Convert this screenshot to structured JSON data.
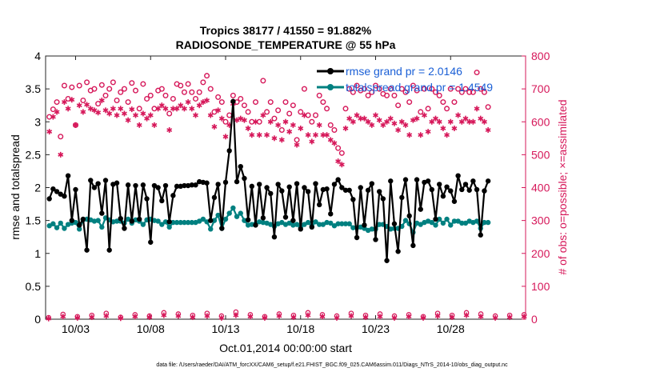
{
  "chart_data": {
    "type": "line",
    "title": "Tropics 38177 / 41550 = 91.882%",
    "subtitle": "RADIOSONDE_TEMPERATURE @ 55 hPa",
    "xlabel": "Oct.01,2014 00:00:00 start",
    "ylabel_left": "rmse and totalspread",
    "ylabel_right": "# of obs: o=possible; ×=assimilated",
    "footer": "data file: /Users/raeder/DAI/ATM_forcXX/CAM6_setup/f.e21.FHIST_BGC.f09_025.CAM6assim.011/Diags_NTrS_2014-10/obs_diag_output.nc",
    "xlim": [
      1,
      33
    ],
    "x_ticks": [
      3,
      8,
      13,
      18,
      23,
      28
    ],
    "x_tick_labels": [
      "10/03",
      "10/08",
      "10/13",
      "10/18",
      "10/23",
      "10/28"
    ],
    "ylim_left": [
      0,
      4
    ],
    "y_ticks_left": [
      "0",
      "0.5",
      "1",
      "1.5",
      "2",
      "2.5",
      "3",
      "3.5",
      "4"
    ],
    "ylim_right": [
      0,
      800
    ],
    "y_ticks_right": [
      "0",
      "100",
      "200",
      "300",
      "400",
      "500",
      "600",
      "700",
      "800"
    ],
    "x_start": 1.25,
    "x_step": 0.25,
    "legend_position": "top-right",
    "series": [
      {
        "name": "rmse grand pr = 2.0146",
        "color": "#000000",
        "marker": "filled-circle",
        "axis": "left",
        "values": [
          1.83,
          1.98,
          1.94,
          1.9,
          1.87,
          2.18,
          1.5,
          1.97,
          1.43,
          1.52,
          1.05,
          2.11,
          2.0,
          2.06,
          1.61,
          2.11,
          1.05,
          2.05,
          2.07,
          1.53,
          1.38,
          2.04,
          1.49,
          2.03,
          1.52,
          2.04,
          1.83,
          1.17,
          2.03,
          2.0,
          1.8,
          2.03,
          1.48,
          1.88,
          2.02,
          2.02,
          2.03,
          2.03,
          2.04,
          2.04,
          2.09,
          2.08,
          2.07,
          1.5,
          1.85,
          2.05,
          1.38,
          2.08,
          2.56,
          3.31,
          2.09,
          2.32,
          2.14,
          1.51,
          2.02,
          1.43,
          2.05,
          1.54,
          2.0,
          1.91,
          1.25,
          2.05,
          1.95,
          1.55,
          2.01,
          1.5,
          2.06,
          1.37,
          2.0,
          1.94,
          1.4,
          2.06,
          1.74,
          1.97,
          1.98,
          1.6,
          2.05,
          2.12,
          2.0,
          1.96,
          1.96,
          1.82,
          1.24,
          2.0,
          1.43,
          1.96,
          2.06,
          1.21,
          1.94,
          1.83,
          0.89,
          2.1,
          1.45,
          1.03,
          1.85,
          2.12,
          1.57,
          1.12,
          2.12,
          1.67,
          2.08,
          2.1,
          1.97,
          1.52,
          2.05,
          1.87,
          2.01,
          1.95,
          1.79,
          2.18,
          1.97,
          2.05,
          1.96,
          2.1,
          1.97,
          1.28,
          1.95,
          2.1
        ]
      },
      {
        "name": "totalspread grand pr = 1.4549",
        "color": "#008080",
        "marker": "filled-circle",
        "axis": "left",
        "values": [
          1.42,
          1.45,
          1.39,
          1.46,
          1.38,
          1.44,
          1.46,
          1.47,
          1.37,
          1.51,
          1.52,
          1.51,
          1.49,
          1.5,
          1.4,
          1.54,
          1.51,
          1.48,
          1.49,
          1.49,
          1.46,
          1.52,
          1.46,
          1.51,
          1.49,
          1.44,
          1.51,
          1.52,
          1.5,
          1.49,
          1.44,
          1.48,
          1.4,
          1.47,
          1.47,
          1.47,
          1.47,
          1.47,
          1.47,
          1.47,
          1.49,
          1.52,
          1.48,
          1.37,
          1.5,
          1.58,
          1.38,
          1.52,
          1.61,
          1.69,
          1.56,
          1.61,
          1.5,
          1.43,
          1.44,
          1.45,
          1.48,
          1.47,
          1.46,
          1.44,
          1.41,
          1.45,
          1.47,
          1.44,
          1.46,
          1.43,
          1.44,
          1.4,
          1.44,
          1.47,
          1.41,
          1.48,
          1.44,
          1.44,
          1.47,
          1.46,
          1.42,
          1.45,
          1.45,
          1.45,
          1.45,
          1.39,
          1.39,
          1.4,
          1.38,
          1.35,
          1.37,
          1.37,
          1.44,
          1.44,
          1.41,
          1.37,
          1.38,
          1.38,
          1.41,
          1.5,
          1.45,
          1.32,
          1.46,
          1.44,
          1.47,
          1.49,
          1.47,
          1.43,
          1.52,
          1.46,
          1.52,
          1.43,
          1.49,
          1.49,
          1.46,
          1.46,
          1.49,
          1.47,
          1.49,
          1.38,
          1.47,
          1.47
        ]
      },
      {
        "name": "possible",
        "color": "#d6185a",
        "marker": "open-circle",
        "axis": "right",
        "values": [
          615,
          638,
          660,
          555,
          710,
          670,
          705,
          590,
          710,
          665,
          720,
          695,
          700,
          655,
          712,
          680,
          700,
          720,
          665,
          690,
          700,
          660,
          718,
          695,
          640,
          715,
          670,
          680,
          640,
          695,
          700,
          680,
          625,
          670,
          715,
          710,
          690,
          715,
          690,
          670,
          690,
          720,
          740,
          700,
          630,
          675,
          660,
          600,
          620,
          680,
          660,
          670,
          650,
          630,
          600,
          660,
          600,
          725,
          630,
          660,
          610,
          635,
          575,
          660,
          625,
          650,
          545,
          630,
          700,
          620,
          600,
          620,
          680,
          660,
          640,
          590,
          575,
          520,
          505,
          640,
          700,
          690,
          710,
          695,
          700,
          680,
          690,
          710,
          700,
          685,
          680,
          700,
          680,
          650,
          700,
          690,
          660,
          710,
          695,
          630,
          700,
          640,
          700,
          690,
          680,
          660,
          640,
          700,
          660,
          700,
          690,
          700,
          690,
          690,
          750,
          700,
          690,
          645
        ]
      },
      {
        "name": "assimilated",
        "color": "#d6185a",
        "marker": "asterisk",
        "axis": "right",
        "values": [
          570,
          615,
          630,
          500,
          660,
          640,
          667,
          590,
          650,
          630,
          652,
          640,
          635,
          628,
          665,
          635,
          625,
          640,
          620,
          640,
          625,
          605,
          638,
          620,
          590,
          625,
          610,
          620,
          590,
          640,
          650,
          640,
          575,
          640,
          640,
          650,
          640,
          660,
          640,
          620,
          650,
          660,
          665,
          620,
          585,
          635,
          610,
          555,
          590,
          655,
          605,
          610,
          605,
          580,
          560,
          600,
          560,
          620,
          560,
          600,
          550,
          590,
          545,
          600,
          570,
          590,
          530,
          580,
          620,
          560,
          540,
          560,
          590,
          560,
          560,
          545,
          535,
          480,
          470,
          580,
          610,
          600,
          620,
          610,
          610,
          600,
          590,
          620,
          605,
          590,
          600,
          610,
          595,
          575,
          600,
          590,
          560,
          605,
          610,
          560,
          620,
          570,
          600,
          610,
          600,
          580,
          560,
          600,
          580,
          620,
          600,
          610,
          600,
          600,
          640,
          610,
          600,
          575
        ]
      }
    ],
    "bottom_series": {
      "note": "near-zero counts along bottom axis",
      "possible_values": [
        5,
        15,
        8,
        12,
        18,
        6,
        14,
        10,
        20,
        16,
        12,
        18,
        10,
        22,
        14,
        8,
        16,
        12,
        20,
        14,
        10,
        18,
        12,
        16,
        10,
        14,
        8,
        18,
        12,
        20,
        16,
        10,
        12,
        14
      ],
      "assimilated_values": [
        2,
        8,
        4,
        6,
        10,
        3,
        8,
        6,
        12,
        10,
        6,
        10,
        4,
        12,
        8,
        4,
        10,
        6,
        12,
        8,
        4,
        10,
        6,
        8,
        4,
        8,
        4,
        10,
        6,
        12,
        8,
        4,
        6,
        8
      ]
    }
  }
}
